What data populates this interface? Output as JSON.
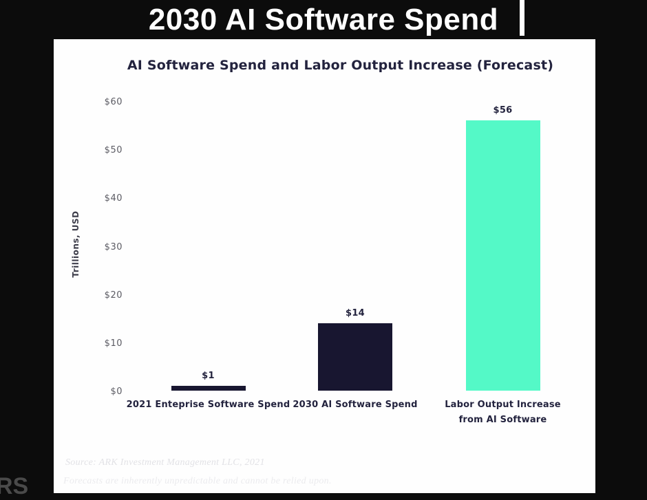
{
  "page": {
    "title": "2030 AI Software Spend",
    "watermark": "RS"
  },
  "chart_data": {
    "type": "bar",
    "title": "AI Software Spend and Labor Output Increase (Forecast)",
    "xlabel": "",
    "ylabel": "Trillions, USD",
    "categories": [
      "2021 Enteprise Software Spend",
      "2030 AI Software Spend",
      "Labor Output Increase\nfrom AI Software"
    ],
    "values": [
      1,
      14,
      56
    ],
    "value_labels": [
      "$1",
      "$14",
      "$56"
    ],
    "bar_colors": [
      "#181630",
      "#181630",
      "#54f9c7"
    ],
    "yticks": [
      0,
      10,
      20,
      30,
      40,
      50,
      60
    ],
    "ytick_labels": [
      "$0",
      "$10",
      "$20",
      "$30",
      "$40",
      "$50",
      "$60"
    ],
    "ylim": [
      0,
      60
    ],
    "grid": false,
    "legend": false
  },
  "footer": {
    "source_line": "Source: ARK Investment Management LLC, 2021",
    "disclaimer_line": "Forecasts are inherently unpredictable and cannot be relied upon."
  },
  "colors": {
    "background": "#0c0c0c",
    "panel": "#fefefe",
    "bar_navy": "#181630",
    "bar_teal": "#54f9c7",
    "title_text": "#ffffff",
    "chart_text": "#23233e",
    "tick_text": "#5b5b63"
  }
}
